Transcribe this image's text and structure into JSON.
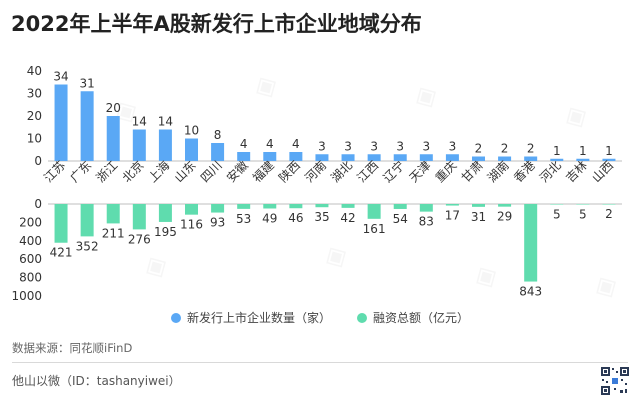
{
  "header": {
    "title": "2022年上半年A股新发行上市企业地域分布"
  },
  "legend": {
    "items": [
      {
        "label": "新发行上市企业数量（家）",
        "color": "#5aa8f5"
      },
      {
        "label": "融资总额（亿元）",
        "color": "#5fdcae"
      }
    ]
  },
  "footer": {
    "source": "数据来源：同花顺iFinD",
    "brand": "他山以微（ID：tashanyiwei）"
  },
  "chart_data": {
    "type": "bar",
    "categories": [
      "江苏",
      "广东",
      "浙江",
      "北京",
      "上海",
      "山东",
      "四川",
      "安徽",
      "福建",
      "陕西",
      "河南",
      "湖北",
      "江西",
      "辽宁",
      "天津",
      "重庆",
      "甘肃",
      "湖南",
      "香港",
      "河北",
      "吉林",
      "山西"
    ],
    "series": [
      {
        "name": "新发行上市企业数量（家）",
        "values": [
          34,
          31,
          20,
          14,
          14,
          10,
          8,
          4,
          4,
          4,
          3,
          3,
          3,
          3,
          3,
          3,
          2,
          2,
          2,
          1,
          1,
          1
        ],
        "color": "#5aa8f5"
      },
      {
        "name": "融资总额（亿元）",
        "values": [
          421,
          352,
          211,
          276,
          195,
          116,
          93,
          53,
          49,
          46,
          35,
          42,
          161,
          54,
          83,
          17,
          31,
          29,
          843,
          5,
          5,
          2
        ],
        "color": "#5fdcae"
      }
    ],
    "top_axis": {
      "ylim": [
        0,
        40
      ],
      "ticks": [
        "0",
        "10",
        "20",
        "30",
        "40"
      ]
    },
    "bottom_axis": {
      "ylim": [
        0,
        1000
      ],
      "ticks": [
        "0",
        "200",
        "400",
        "600",
        "800",
        "1000"
      ],
      "inverted": true
    },
    "grid": false,
    "legend_position": "bottom"
  }
}
